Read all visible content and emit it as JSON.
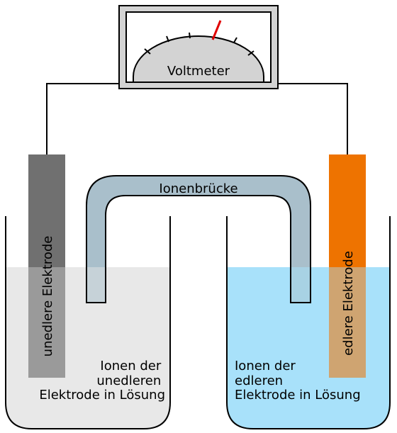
{
  "voltmeter": {
    "label": "Voltmeter",
    "needle_color": "#e00000"
  },
  "ion_bridge": {
    "label": "Ionenbrücke",
    "color": "#a9bfcb"
  },
  "left_electrode": {
    "label": "unedlere Elektrode",
    "color": "#707070"
  },
  "right_electrode": {
    "label": "edlere Elektrode",
    "color": "#ee7300"
  },
  "left_solution": {
    "lines": [
      "Ionen der",
      "unedleren",
      "Elektrode in Lösung"
    ],
    "color": "#e8e8e8"
  },
  "right_solution": {
    "lines": [
      "Ionen der",
      "edleren",
      "Elektrode in Lösung"
    ],
    "color": "#a8e1fa"
  }
}
